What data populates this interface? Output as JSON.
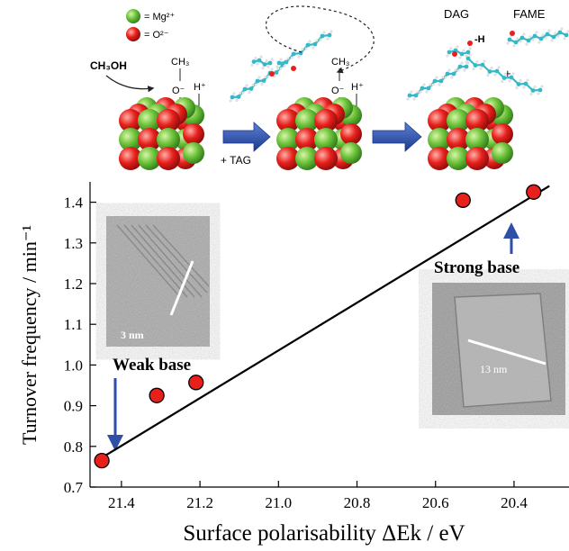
{
  "scheme": {
    "legend": [
      {
        "label": "= Mg²⁺",
        "color": "#6cc23a"
      },
      {
        "label": "= O²⁻",
        "color": "#e8201c"
      }
    ],
    "reactant": "CH₃OH",
    "methoxy_top": "CH₃",
    "methoxy_bottom": "O⁻",
    "proton": "H⁺",
    "arrow_label": "+ TAG",
    "dag_label": "DAG",
    "fame_label": "FAME",
    "h_label": "-H",
    "plus": "+"
  },
  "inset_left": {
    "scale": "3 nm"
  },
  "inset_right": {
    "scale": "13 nm"
  },
  "annotations": {
    "weak": "Weak base",
    "strong": "Strong base"
  },
  "colors": {
    "point": "#e8201c",
    "fit": "#000000",
    "arrow": "#2e4ea8",
    "mg": "#6cc23a",
    "o": "#e8201c",
    "chain": "#35b8c8"
  },
  "chart_data": {
    "type": "scatter",
    "xlabel": "Surface polarisability ΔEk / eV",
    "ylabel": "Turnover frequency / min⁻¹",
    "x_reversed": true,
    "xlim": [
      21.48,
      20.26
    ],
    "ylim": [
      0.7,
      1.45
    ],
    "x_ticks": [
      21.4,
      21.2,
      21.0,
      20.8,
      20.6,
      20.4
    ],
    "x_tick_labels": [
      "21.4",
      "21.2",
      "21.0",
      "20.8",
      "20.6",
      "20.4"
    ],
    "y_ticks": [
      0.7,
      0.8,
      0.9,
      1.0,
      1.1,
      1.2,
      1.3,
      1.4
    ],
    "y_tick_labels": [
      "0.7",
      "0.8",
      "0.9",
      "1.0",
      "1.1",
      "1.2",
      "1.3",
      "1.4"
    ],
    "points": [
      {
        "x": 21.45,
        "y": 0.765
      },
      {
        "x": 21.31,
        "y": 0.925
      },
      {
        "x": 21.21,
        "y": 0.957
      },
      {
        "x": 20.53,
        "y": 1.405
      },
      {
        "x": 20.35,
        "y": 1.425
      }
    ],
    "fit_line": {
      "x": [
        21.44,
        20.31
      ],
      "y": [
        0.778,
        1.44
      ]
    }
  }
}
